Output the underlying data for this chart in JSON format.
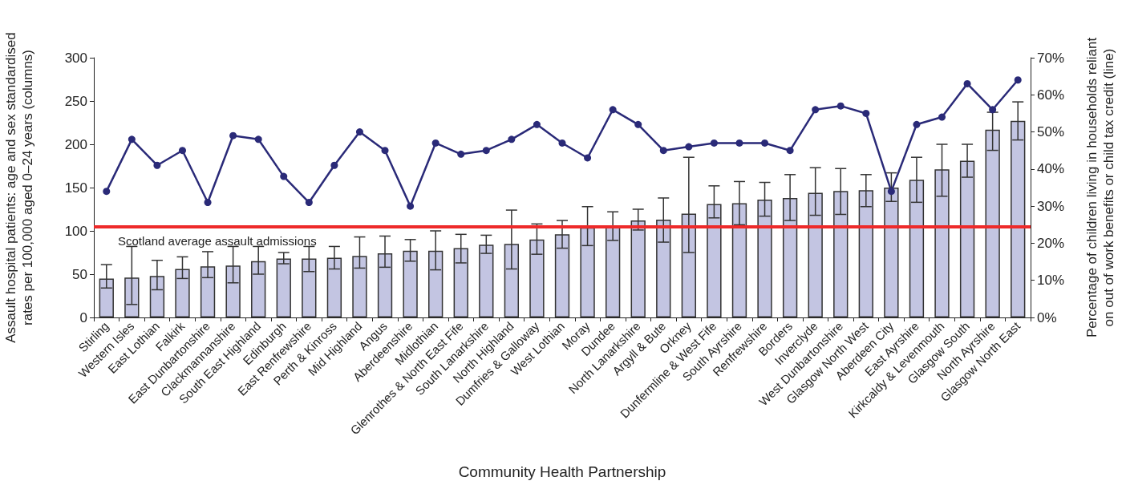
{
  "chart_data": {
    "type": "bar",
    "xlabel": "Community Health Partnership",
    "ylabel": "Assault hospital patients: age and sex standardised rates per 100,000 aged 0–24 years (columns)",
    "y2label": "Percentage of children living in households reliant on out of work benefits or child tax credit (line)",
    "categories": [
      "Stirling",
      "Western Isles",
      "East Lothian",
      "Falkirk",
      "East Dunbartonshire",
      "Clackmannanshire",
      "South East Highland",
      "Edinburgh",
      "East Renfrewshire",
      "Perth & Kinross",
      "Mid Highland",
      "Angus",
      "Aberdeenshire",
      "Midlothian",
      "Glenrothes & North East Fife",
      "South Lanarkshire",
      "North Highland",
      "Dumfries & Galloway",
      "West Lothian",
      "Moray",
      "Dundee",
      "North Lanarkshire",
      "Argyll & Bute",
      "Orkney",
      "Dunfermline & West Fife",
      "South Ayrshire",
      "Renfrewshire",
      "Borders",
      "Inverclyde",
      "West Dunbartonshire",
      "Glasgow North West",
      "Aberdeen City",
      "East Ayrshire",
      "Kirkcaldy & Levenmouth",
      "Glasgow South",
      "North Ayrshire",
      "Glasgow North East"
    ],
    "series": [
      {
        "color": "#c3c5e2",
        "values": [
          45,
          46,
          48,
          56,
          59,
          60,
          65,
          68,
          68,
          69,
          71,
          74,
          77,
          77,
          80,
          84,
          85,
          90,
          96,
          104,
          106,
          112,
          113,
          120,
          131,
          132,
          136,
          138,
          144,
          146,
          147,
          150,
          159,
          171,
          181,
          217,
          227
        ],
        "errors": [
          [
            34,
            61
          ],
          [
            15,
            82
          ],
          [
            32,
            66
          ],
          [
            45,
            70
          ],
          [
            46,
            76
          ],
          [
            40,
            82
          ],
          [
            50,
            82
          ],
          [
            62,
            75
          ],
          [
            53,
            82
          ],
          [
            56,
            82
          ],
          [
            57,
            93
          ],
          [
            58,
            94
          ],
          [
            65,
            90
          ],
          [
            55,
            100
          ],
          [
            63,
            96
          ],
          [
            74,
            95
          ],
          [
            56,
            124
          ],
          [
            73,
            108
          ],
          [
            80,
            112
          ],
          [
            83,
            128
          ],
          [
            89,
            122
          ],
          [
            101,
            125
          ],
          [
            87,
            138
          ],
          [
            75,
            185
          ],
          [
            115,
            152
          ],
          [
            107,
            157
          ],
          [
            117,
            156
          ],
          [
            112,
            165
          ],
          [
            118,
            173
          ],
          [
            119,
            172
          ],
          [
            128,
            165
          ],
          [
            134,
            167
          ],
          [
            133,
            185
          ],
          [
            140,
            200
          ],
          [
            162,
            200
          ],
          [
            193,
            237
          ],
          [
            205,
            249
          ]
        ]
      },
      {
        "type": "line",
        "axis": "y2",
        "color": "#2a2a78",
        "values": [
          34,
          48,
          41,
          45,
          31,
          49,
          48,
          38,
          31,
          41,
          50,
          45,
          30,
          47,
          44,
          45,
          48,
          52,
          47,
          43,
          56,
          52,
          45,
          46,
          47,
          47,
          47,
          45,
          56,
          57,
          55,
          34,
          52,
          54,
          63,
          56,
          64
        ]
      }
    ],
    "ylim": [
      0,
      300
    ],
    "yticks": [
      0,
      50,
      100,
      150,
      200,
      250,
      300
    ],
    "y2lim": [
      0,
      70
    ],
    "y2ticks": [
      {
        "value": 0,
        "label": "0%"
      },
      {
        "value": 10,
        "label": "10%"
      },
      {
        "value": 20,
        "label": "20%"
      },
      {
        "value": 30,
        "label": "30%"
      },
      {
        "value": 40,
        "label": "40%"
      },
      {
        "value": 50,
        "label": "50%"
      },
      {
        "value": 60,
        "label": "60%"
      },
      {
        "value": 70,
        "label": "70%"
      }
    ],
    "ref_lines": [
      {
        "axis": "y",
        "value": 105,
        "label": "Scotland average assault admissions",
        "color": "#ee2a2a"
      }
    ],
    "marker": "circle",
    "grid": false
  }
}
